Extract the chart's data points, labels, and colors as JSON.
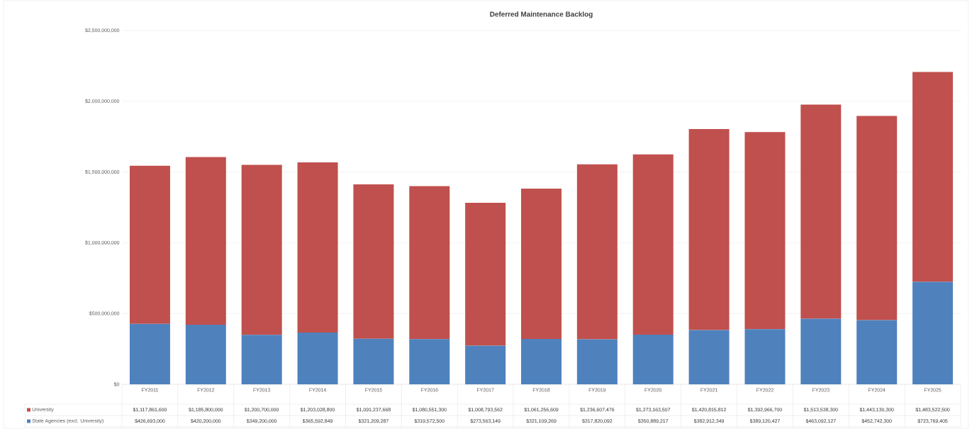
{
  "chart_data": {
    "type": "bar",
    "title": "Deferred Maintenance Backlog",
    "stacked": true,
    "categories": [
      "FY2011",
      "FY2012",
      "FY2013",
      "FY2014",
      "FY2015",
      "FY2016",
      "FY2017",
      "FY2018",
      "FY2019",
      "FY2020",
      "FY2021",
      "FY2022",
      "FY2023",
      "FY2024",
      "FY2025"
    ],
    "series": [
      {
        "name": "State Agencies (excl. University)",
        "color": "#4f81bd",
        "values": [
          426693000,
          420200000,
          349200000,
          365592849,
          321209287,
          319572500,
          273563149,
          321109269,
          317820092,
          350889217,
          382912349,
          389120427,
          463092127,
          452742300,
          723769405
        ],
        "value_labels": [
          "$426,693,000",
          "$420,200,000",
          "$349,200,000",
          "$365,592,849",
          "$321,209,287",
          "$319,572,500",
          "$273,563,149",
          "$321,109,269",
          "$317,820,092",
          "$350,889,217",
          "$382,912,349",
          "$389,120,427",
          "$463,092,127",
          "$452,742,300",
          "$723,769,405"
        ]
      },
      {
        "name": "University",
        "color": "#c0504d",
        "values": [
          1117861600,
          1185800000,
          1200700000,
          1203028800,
          1091237668,
          1080551300,
          1008793562,
          1061256609,
          1236607476,
          1273163507,
          1420815812,
          1392966700,
          1513538300,
          1443130300,
          1483522500
        ],
        "value_labels": [
          "$1,117,861,600",
          "$1,185,800,000",
          "$1,200,700,000",
          "$1,203,028,800",
          "$1,091,237,668",
          "$1,080,551,300",
          "$1,008,793,562",
          "$1,061,256,609",
          "$1,236,607,476",
          "$1,273,163,507",
          "$1,420,815,812",
          "$1,392,966,700",
          "$1,513,538,300",
          "$1,443,130,300",
          "$1,483,522,500"
        ]
      }
    ],
    "ylim": [
      0,
      2500000000
    ],
    "yticks": [
      {
        "value": 0,
        "label": "$0"
      },
      {
        "value": 500000000,
        "label": "$500,000,000"
      },
      {
        "value": 1000000000,
        "label": "$1,000,000,000"
      },
      {
        "value": 1500000000,
        "label": "$1,500,000,000"
      },
      {
        "value": 2000000000,
        "label": "$2,000,000,000"
      },
      {
        "value": 2500000000,
        "label": "$2,500,000,000"
      }
    ],
    "grid": "y",
    "legend": "bottom"
  }
}
